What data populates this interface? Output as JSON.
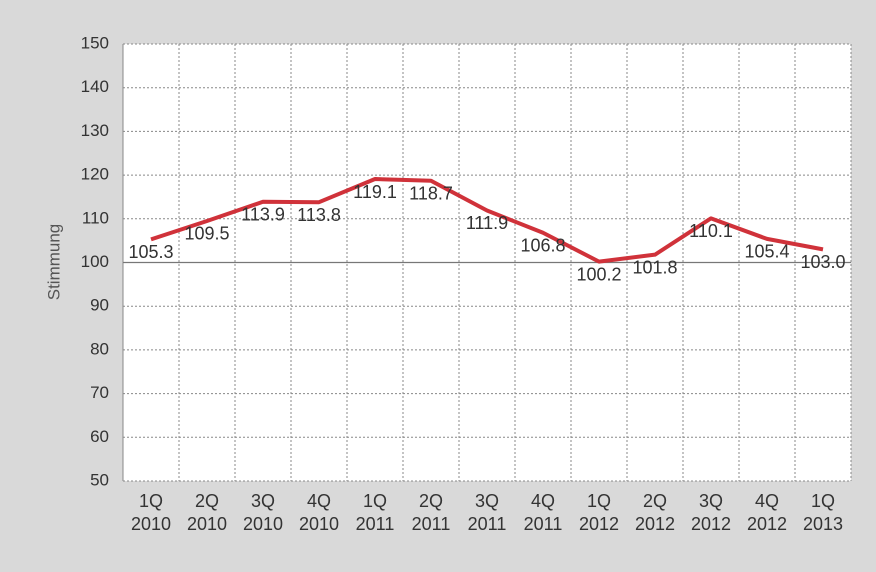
{
  "chart_data": {
    "type": "line",
    "y_label": "Stimmung",
    "categories": [
      "1Q 2010",
      "2Q 2010",
      "3Q 2010",
      "4Q 2010",
      "1Q 2011",
      "2Q 2011",
      "3Q 2011",
      "4Q 2011",
      "1Q 2012",
      "2Q 2012",
      "3Q 2012",
      "4Q 2012",
      "1Q 2013"
    ],
    "series": [
      {
        "color": "#d0323a",
        "values": [
          105.3,
          109.5,
          113.9,
          113.8,
          119.1,
          118.7,
          111.9,
          106.8,
          100.2,
          101.8,
          110.1,
          105.4,
          103.0
        ],
        "value_labels": [
          "105.3",
          "109.5",
          "113.9",
          "113.8",
          "119.1",
          "118.7",
          "111.9",
          "106.8",
          "100.2",
          "101.8",
          "110.1",
          "105.4",
          "103.0"
        ]
      }
    ],
    "ylim": [
      50,
      150
    ],
    "yticks": [
      50,
      60,
      70,
      80,
      90,
      100,
      110,
      120,
      130,
      140,
      150
    ],
    "x_axis_at": 100,
    "grid": true
  }
}
